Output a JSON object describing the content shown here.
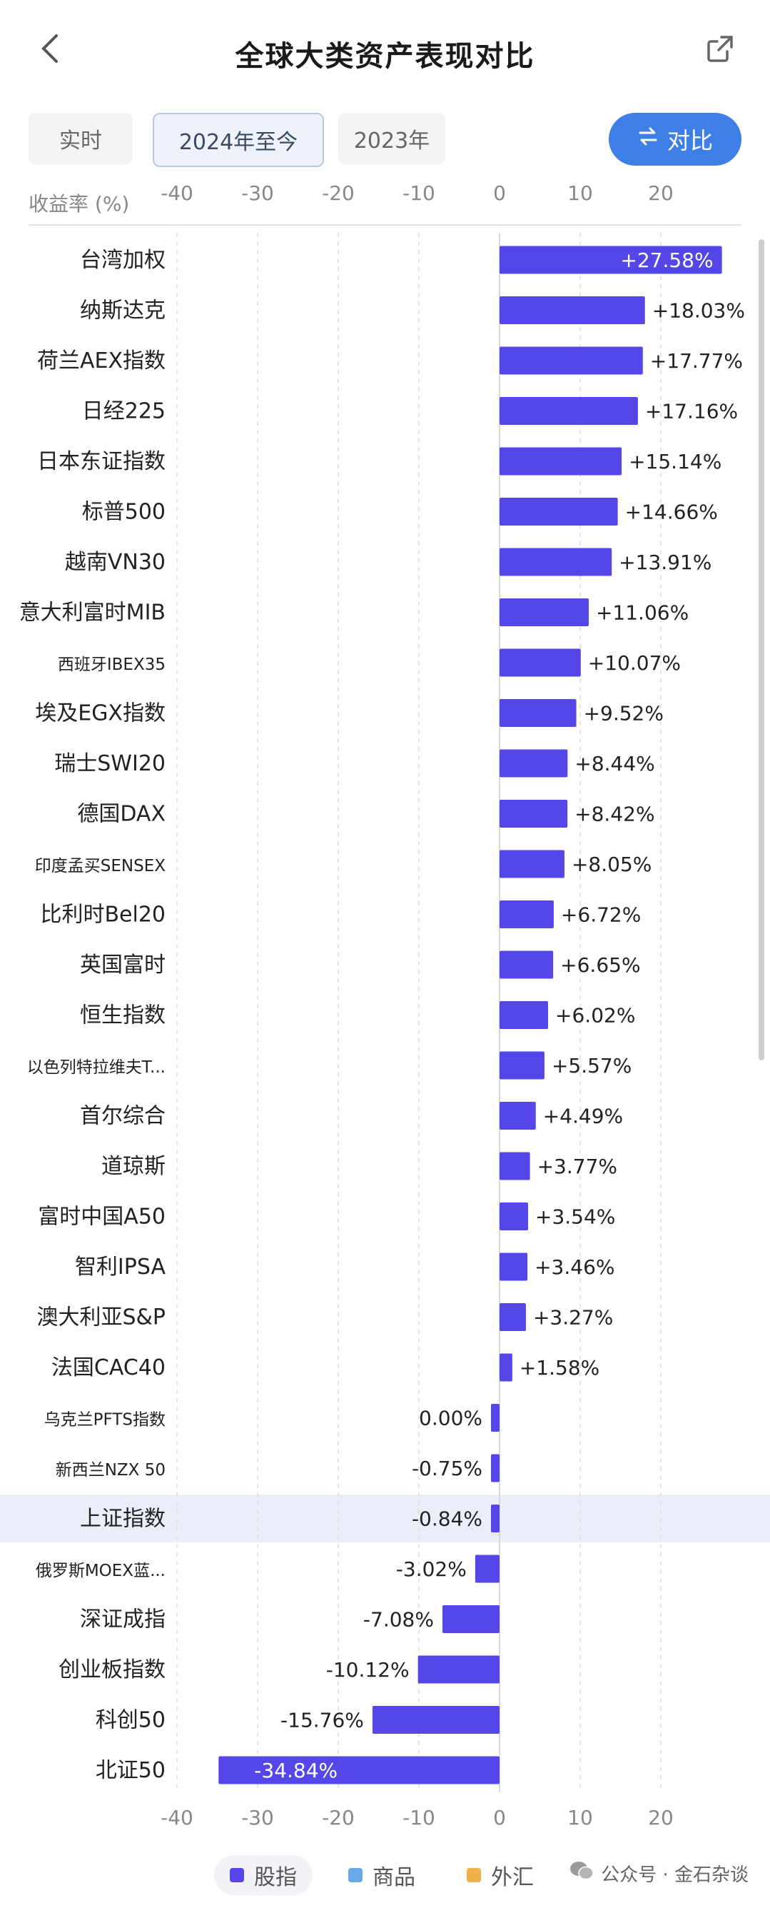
{
  "header": {
    "title": "全球大类资产表现对比",
    "back_icon": "chevron-left-icon",
    "share_icon": "share-external-icon"
  },
  "tabs": [
    {
      "label": "实时",
      "active": false
    },
    {
      "label": "2024年至今",
      "active": true
    },
    {
      "label": "2023年",
      "active": false
    }
  ],
  "compare_button": {
    "label": "对比",
    "icon": "swap-arrows-icon"
  },
  "colors": {
    "bar": "#5546e8",
    "accent": "#3e7fe6",
    "highlight_row": "#e9eef8",
    "legend_stock": "#5546e8",
    "legend_commodity": "#6aa8e8",
    "legend_fx": "#f2b04a"
  },
  "chart_data": {
    "type": "bar",
    "orientation": "horizontal",
    "title": "",
    "xlabel": "收益率 (%)",
    "xlim": [
      -45,
      30
    ],
    "x_ticks": [
      -40,
      -30,
      -20,
      -10,
      0,
      10,
      20
    ],
    "grid": "vertical dashed",
    "highlighted_category": "上证指数",
    "categories": [
      "台湾加权",
      "纳斯达克",
      "荷兰AEX指数",
      "日经225",
      "日本东证指数",
      "标普500",
      "越南VN30",
      "意大利富时MIB",
      "西班牙IBEX35",
      "埃及EGX指数",
      "瑞士SWI20",
      "德国DAX",
      "印度孟买SENSEX",
      "比利时Bel20",
      "英国富时",
      "恒生指数",
      "以色列特拉维夫T...",
      "首尔综合",
      "道琼斯",
      "富时中国A50",
      "智利IPSA",
      "澳大利亚S&P",
      "法国CAC40",
      "乌克兰PFTS指数",
      "新西兰NZX 50",
      "上证指数",
      "俄罗斯MOEX蓝...",
      "深证成指",
      "创业板指数",
      "科创50",
      "北证50"
    ],
    "values": [
      27.58,
      18.03,
      17.77,
      17.16,
      15.14,
      14.66,
      13.91,
      11.06,
      10.07,
      9.52,
      8.44,
      8.42,
      8.05,
      6.72,
      6.65,
      6.02,
      5.57,
      4.49,
      3.77,
      3.54,
      3.46,
      3.27,
      1.58,
      0.0,
      -0.75,
      -0.84,
      -3.02,
      -7.08,
      -10.12,
      -15.76,
      -34.84
    ],
    "value_labels": [
      "+27.58%",
      "+18.03%",
      "+17.77%",
      "+17.16%",
      "+15.14%",
      "+14.66%",
      "+13.91%",
      "+11.06%",
      "+10.07%",
      "+9.52%",
      "+8.44%",
      "+8.42%",
      "+8.05%",
      "+6.72%",
      "+6.65%",
      "+6.02%",
      "+5.57%",
      "+4.49%",
      "+3.77%",
      "+3.54%",
      "+3.46%",
      "+3.27%",
      "+1.58%",
      "0.00%",
      "-0.75%",
      "-0.84%",
      "-3.02%",
      "-7.08%",
      "-10.12%",
      "-15.76%",
      "-34.84%"
    ]
  },
  "legend": [
    {
      "label": "股指",
      "color": "#5546e8",
      "selected": true
    },
    {
      "label": "商品",
      "color": "#6aa8e8",
      "selected": false
    },
    {
      "label": "外汇",
      "color": "#f2b04a",
      "selected": false
    }
  ],
  "watermark": {
    "text": "公众号 · 金石杂谈",
    "icon": "wechat-icon"
  }
}
